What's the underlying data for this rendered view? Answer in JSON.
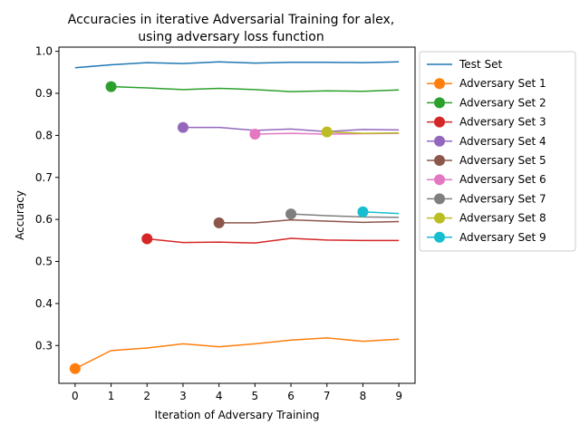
{
  "chart_data": {
    "type": "line",
    "title_lines": [
      "Accuracies in iterative Adversarial Training for alex,",
      "using adversary loss function"
    ],
    "xlabel": "Iteration of Adversary Training",
    "ylabel": "Accuracy",
    "xlim": [
      -0.45,
      9.45
    ],
    "ylim": [
      0.21,
      1.01
    ],
    "xticks": [
      0,
      1,
      2,
      3,
      4,
      5,
      6,
      7,
      8,
      9
    ],
    "yticks": [
      0.3,
      0.4,
      0.5,
      0.6,
      0.7,
      0.8,
      0.9,
      1.0
    ],
    "ytick_labels": [
      "0.3",
      "0.4",
      "0.5",
      "0.6",
      "0.7",
      "0.8",
      "0.9",
      "1.0"
    ],
    "grid": false,
    "legend_position": "outside-right",
    "series": [
      {
        "name": "Test Set",
        "color": "#1f77b4",
        "marker": false,
        "x": [
          0,
          1,
          2,
          3,
          4,
          5,
          6,
          7,
          8,
          9
        ],
        "y": [
          0.961,
          0.968,
          0.973,
          0.971,
          0.975,
          0.972,
          0.974,
          0.974,
          0.973,
          0.975
        ]
      },
      {
        "name": "Adversary Set 1",
        "color": "#ff7f0e",
        "marker": true,
        "x": [
          0,
          1,
          2,
          3,
          4,
          5,
          6,
          7,
          8,
          9
        ],
        "y": [
          0.245,
          0.288,
          0.294,
          0.304,
          0.297,
          0.304,
          0.313,
          0.318,
          0.31,
          0.315
        ]
      },
      {
        "name": "Adversary Set 2",
        "color": "#2ca02c",
        "marker": true,
        "x": [
          1,
          2,
          3,
          4,
          5,
          6,
          7,
          8,
          9
        ],
        "y": [
          0.916,
          0.913,
          0.909,
          0.912,
          0.909,
          0.904,
          0.906,
          0.905,
          0.908
        ]
      },
      {
        "name": "Adversary Set 3",
        "color": "#d62728",
        "marker": true,
        "x": [
          2,
          3,
          4,
          5,
          6,
          7,
          8,
          9
        ],
        "y": [
          0.554,
          0.545,
          0.546,
          0.544,
          0.555,
          0.551,
          0.55,
          0.55
        ]
      },
      {
        "name": "Adversary Set 4",
        "color": "#9467bd",
        "marker": true,
        "x": [
          3,
          4,
          5,
          6,
          7,
          8,
          9
        ],
        "y": [
          0.819,
          0.819,
          0.812,
          0.815,
          0.809,
          0.814,
          0.813
        ]
      },
      {
        "name": "Adversary Set 5",
        "color": "#8c564b",
        "marker": true,
        "x": [
          4,
          5,
          6,
          7,
          8,
          9
        ],
        "y": [
          0.592,
          0.592,
          0.599,
          0.596,
          0.593,
          0.595
        ]
      },
      {
        "name": "Adversary Set 6",
        "color": "#e377c2",
        "marker": true,
        "x": [
          5,
          6,
          7,
          8,
          9
        ],
        "y": [
          0.803,
          0.805,
          0.803,
          0.804,
          0.805
        ]
      },
      {
        "name": "Adversary Set 7",
        "color": "#7f7f7f",
        "marker": true,
        "x": [
          6,
          7,
          8,
          9
        ],
        "y": [
          0.613,
          0.609,
          0.606,
          0.605
        ]
      },
      {
        "name": "Adversary Set 8",
        "color": "#bcbd22",
        "marker": true,
        "x": [
          7,
          8,
          9
        ],
        "y": [
          0.808,
          0.805,
          0.806
        ]
      },
      {
        "name": "Adversary Set 9",
        "color": "#17becf",
        "marker": true,
        "x": [
          8,
          9
        ],
        "y": [
          0.618,
          0.614
        ]
      }
    ]
  }
}
